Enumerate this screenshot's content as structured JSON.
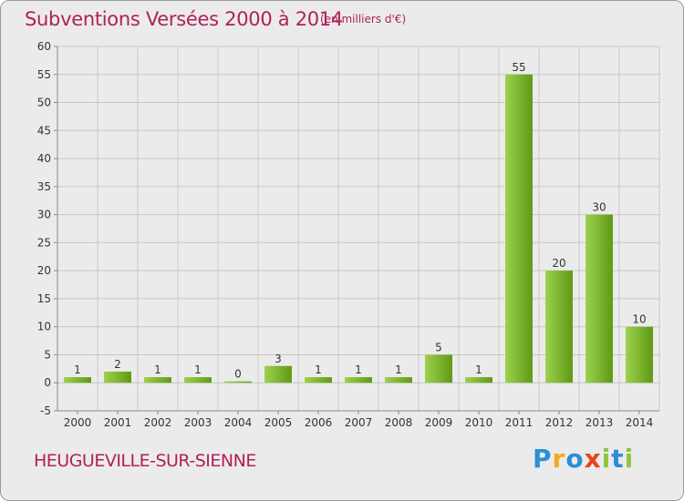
{
  "title": "Subventions Versées 2000 à 2014",
  "subtitle": "(en milliers d'€)",
  "commune": "HEUGUEVILLE-SUR-SIENNE",
  "logo": {
    "text": "Proxiti",
    "letters": [
      {
        "ch": "P",
        "color": "#2b8fd6"
      },
      {
        "ch": "r",
        "color": "#f7a81b"
      },
      {
        "ch": "o",
        "color": "#2b8fd6"
      },
      {
        "ch": "x",
        "color": "#e8431e"
      },
      {
        "ch": "i",
        "color": "#8dc63f"
      },
      {
        "ch": "t",
        "color": "#2b8fd6"
      },
      {
        "ch": "i",
        "color": "#8dc63f"
      }
    ]
  },
  "colors": {
    "title": "#b0205a",
    "bar_light": "#9ed14e",
    "bar_dark": "#5e9a14",
    "grid": "#c8c8c8",
    "axis_text": "#333333"
  },
  "chart_data": {
    "type": "bar",
    "categories": [
      "2000",
      "2001",
      "2002",
      "2003",
      "2004",
      "2005",
      "2006",
      "2007",
      "2008",
      "2009",
      "2010",
      "2011",
      "2012",
      "2013",
      "2014"
    ],
    "values": [
      1,
      2,
      1,
      1,
      0,
      3,
      1,
      1,
      1,
      5,
      1,
      55,
      20,
      30,
      10
    ],
    "ylim": [
      -5,
      60
    ],
    "yticks": [
      -5,
      0,
      5,
      10,
      15,
      20,
      25,
      30,
      35,
      40,
      45,
      50,
      55,
      60
    ],
    "grid": true,
    "data_labels": true
  }
}
